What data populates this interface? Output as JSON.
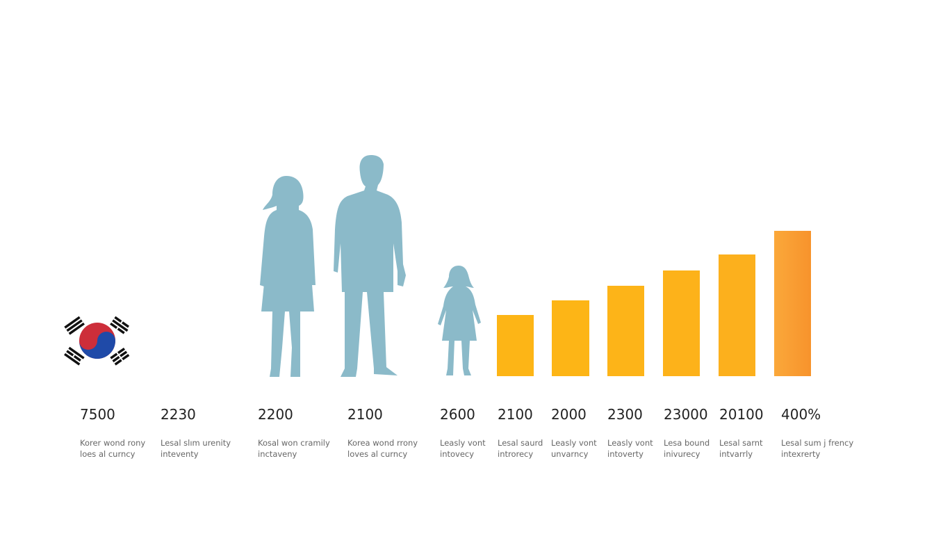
{
  "columns": [
    {
      "value": "7500",
      "caption": [
        "Korer wond rony",
        "loes al curncy"
      ]
    },
    {
      "value": "2230",
      "caption": [
        "Lesal slım urenity",
        "inteventy"
      ]
    },
    {
      "value": "2200",
      "caption": [
        "Kosal won cramily",
        "inctaveny"
      ]
    },
    {
      "value": "2100",
      "caption": [
        "Korea wond rrony",
        "loves al curncy"
      ]
    },
    {
      "value": "2600",
      "caption": [
        "Leasly vont",
        "intovecy"
      ]
    },
    {
      "value": "2100",
      "caption": [
        "Lesal saurd",
        "introrecy"
      ]
    },
    {
      "value": "2000",
      "caption": [
        "Leasly vont",
        "unvarncy"
      ]
    },
    {
      "value": "2300",
      "caption": [
        "Leasly vont",
        "intoverty"
      ]
    },
    {
      "value": "23000",
      "caption": [
        "Lesa bound",
        "inivurecy"
      ]
    },
    {
      "value": "20100",
      "caption": [
        "Lesal sarnt",
        "intvarrly"
      ]
    },
    {
      "value": "400%",
      "caption": [
        "Lesal sum j frency",
        "intexrerty"
      ]
    }
  ]
}
